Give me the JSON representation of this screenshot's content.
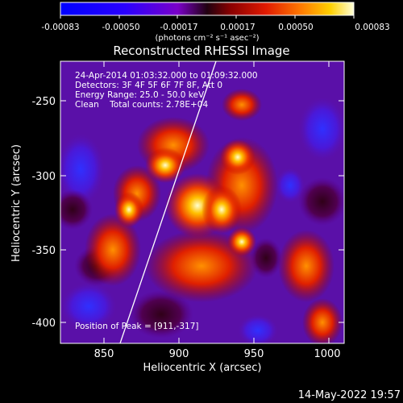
{
  "colorbar": {
    "tick_labels": [
      "-0.00083",
      "-0.00050",
      "-0.00017",
      "0.00017",
      "0.00050",
      "0.00083"
    ],
    "units_label": "(photons cm⁻² s⁻¹ asec⁻²)"
  },
  "title": "Reconstructed RHESSI Image",
  "info": {
    "line1": "24-Apr-2014 01:03:32.000 to 01:09:32.000",
    "line2": "Detectors: 3F 4F 5F 6F 7F 8F, Att 0",
    "line3": "Energy Range: 25.0 - 50.0 keV",
    "line4": "Clean    Total counts: 2.78E+04"
  },
  "peak_label": "Position of Peak = [911,-317]",
  "x_axis": {
    "label": "Heliocentric X (arcsec)",
    "ticks": [
      "850",
      "900",
      "950",
      "1000"
    ]
  },
  "y_axis": {
    "label": "Heliocentric Y (arcsec)",
    "ticks": [
      "-250",
      "-300",
      "-350",
      "-400"
    ]
  },
  "timestamp": "14-May-2022 19:57",
  "colors": {
    "background": "#000000",
    "text": "#ffffff"
  }
}
